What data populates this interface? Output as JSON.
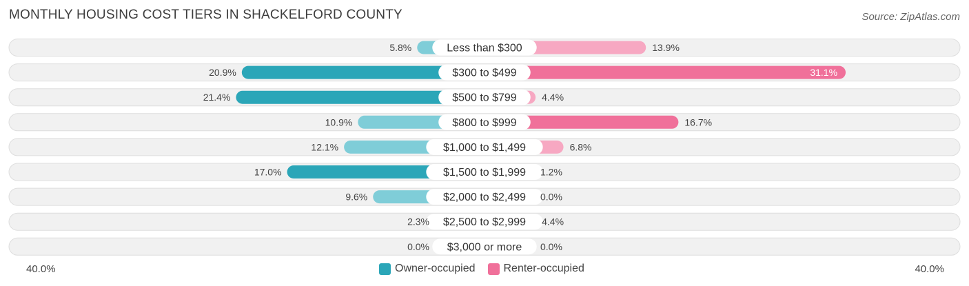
{
  "title": "MONTHLY HOUSING COST TIERS IN SHACKELFORD COUNTY",
  "source": "Source: ZipAtlas.com",
  "colors": {
    "owner_dark": "#2ba6b8",
    "owner_light": "#7fcdd8",
    "renter_dark": "#f0709a",
    "renter_light": "#f7a8c2",
    "row_bg": "#f1f1f1",
    "row_border": "#dedede"
  },
  "legend": {
    "owner": "Owner-occupied",
    "renter": "Renter-occupied"
  },
  "axis": {
    "left_label": "40.0%",
    "right_label": "40.0%"
  },
  "chart_data": {
    "type": "bar",
    "orientation": "horizontal-diverging",
    "title": "MONTHLY HOUSING COST TIERS IN SHACKELFORD COUNTY",
    "xlim": [
      -40,
      40
    ],
    "categories": [
      "Less than $300",
      "$300 to $499",
      "$500 to $799",
      "$800 to $999",
      "$1,000 to $1,499",
      "$1,500 to $1,999",
      "$2,000 to $2,499",
      "$2,500 to $2,999",
      "$3,000 or more"
    ],
    "series": [
      {
        "name": "Owner-occupied",
        "values": [
          5.8,
          20.9,
          21.4,
          10.9,
          12.1,
          17.0,
          9.6,
          2.3,
          0.0
        ],
        "labels": [
          "5.8%",
          "20.9%",
          "21.4%",
          "10.9%",
          "12.1%",
          "17.0%",
          "9.6%",
          "2.3%",
          "0.0%"
        ]
      },
      {
        "name": "Renter-occupied",
        "values": [
          13.9,
          31.1,
          4.4,
          16.7,
          6.8,
          1.2,
          0.0,
          4.4,
          0.0
        ],
        "labels": [
          "13.9%",
          "31.1%",
          "4.4%",
          "16.7%",
          "6.8%",
          "1.2%",
          "0.0%",
          "4.4%",
          "0.0%"
        ]
      }
    ]
  }
}
